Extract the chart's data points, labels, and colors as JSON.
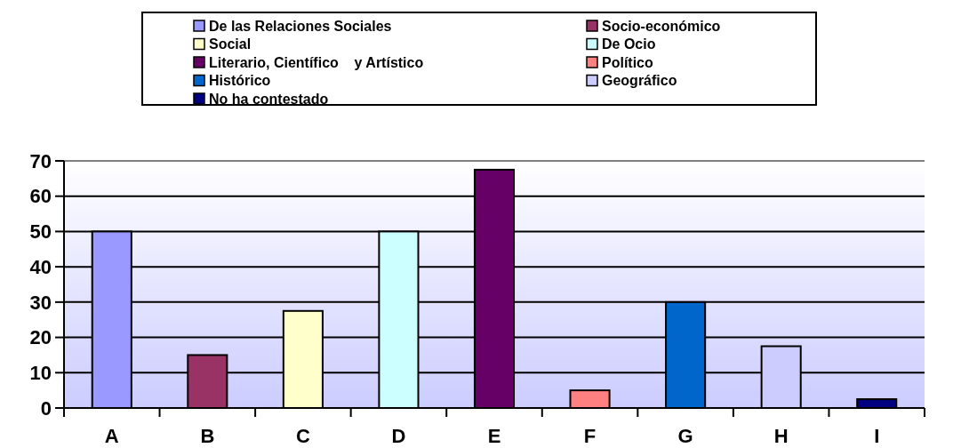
{
  "chart_data": {
    "type": "bar",
    "categories": [
      "A",
      "B",
      "C",
      "D",
      "E",
      "F",
      "G",
      "H",
      "I"
    ],
    "series": [
      {
        "name": "De las Relaciones Sociales",
        "color": "#9999ff",
        "values": [
          50,
          null,
          null,
          null,
          null,
          null,
          null,
          null,
          null
        ]
      },
      {
        "name": "Socio-económico",
        "color": "#993366",
        "values": [
          null,
          15,
          null,
          null,
          null,
          null,
          null,
          null,
          null
        ]
      },
      {
        "name": "Social",
        "color": "#ffffcc",
        "values": [
          null,
          null,
          27.5,
          null,
          null,
          null,
          null,
          null,
          null
        ]
      },
      {
        "name": "De Ocio",
        "color": "#ccffff",
        "values": [
          null,
          null,
          null,
          50,
          null,
          null,
          null,
          null,
          null
        ]
      },
      {
        "name": "Literario, Científico    y Artístico",
        "color": "#660066",
        "values": [
          null,
          null,
          null,
          null,
          67.5,
          null,
          null,
          null,
          null
        ]
      },
      {
        "name": "Político",
        "color": "#ff8080",
        "values": [
          null,
          null,
          null,
          null,
          null,
          5,
          null,
          null,
          null
        ]
      },
      {
        "name": "Histórico",
        "color": "#0066cc",
        "values": [
          null,
          null,
          null,
          null,
          null,
          null,
          30,
          null,
          null
        ]
      },
      {
        "name": "Geográfico",
        "color": "#ccccff",
        "values": [
          null,
          null,
          null,
          null,
          null,
          null,
          null,
          17.5,
          null
        ]
      },
      {
        "name": "No ha contestado",
        "color": "#000080",
        "values": [
          null,
          null,
          null,
          null,
          null,
          null,
          null,
          null,
          2.5
        ]
      }
    ],
    "ylim": [
      0,
      70
    ],
    "yticks": [
      0,
      10,
      20,
      30,
      40,
      50,
      60,
      70
    ],
    "grid": "y",
    "legend": "top"
  }
}
